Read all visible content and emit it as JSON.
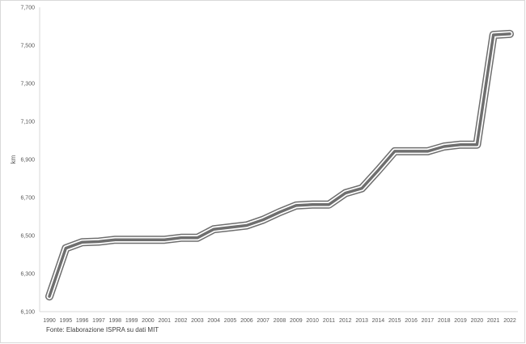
{
  "source": "Fonte: Elaborazione ISPRA su dati MIT",
  "chart_data": {
    "type": "line",
    "title": "",
    "xlabel": "",
    "ylabel": "km",
    "ylim": [
      6100,
      7700
    ],
    "y_ticks": [
      "6,100",
      "6,300",
      "6,500",
      "6,700",
      "6,900",
      "7,100",
      "7,300",
      "7,500",
      "7,700"
    ],
    "grid": false,
    "legend": "none",
    "x": [
      "1990",
      "1995",
      "1996",
      "1997",
      "1998",
      "1999",
      "2000",
      "2001",
      "2002",
      "2003",
      "2004",
      "2005",
      "2006",
      "2007",
      "2008",
      "2009",
      "2010",
      "2011",
      "2012",
      "2013",
      "2014",
      "2015",
      "2016",
      "2017",
      "2018",
      "2019",
      "2020",
      "2021",
      "2022"
    ],
    "series": [
      {
        "values": [
          6180,
          6433,
          6465,
          6468,
          6478,
          6478,
          6478,
          6478,
          6488,
          6488,
          6533,
          6543,
          6553,
          6583,
          6623,
          6658,
          6663,
          6663,
          6723,
          6748,
          6843,
          6943,
          6943,
          6943,
          6968,
          6978,
          6978,
          7555,
          7560
        ],
        "color": "#6e6e6e"
      }
    ]
  }
}
